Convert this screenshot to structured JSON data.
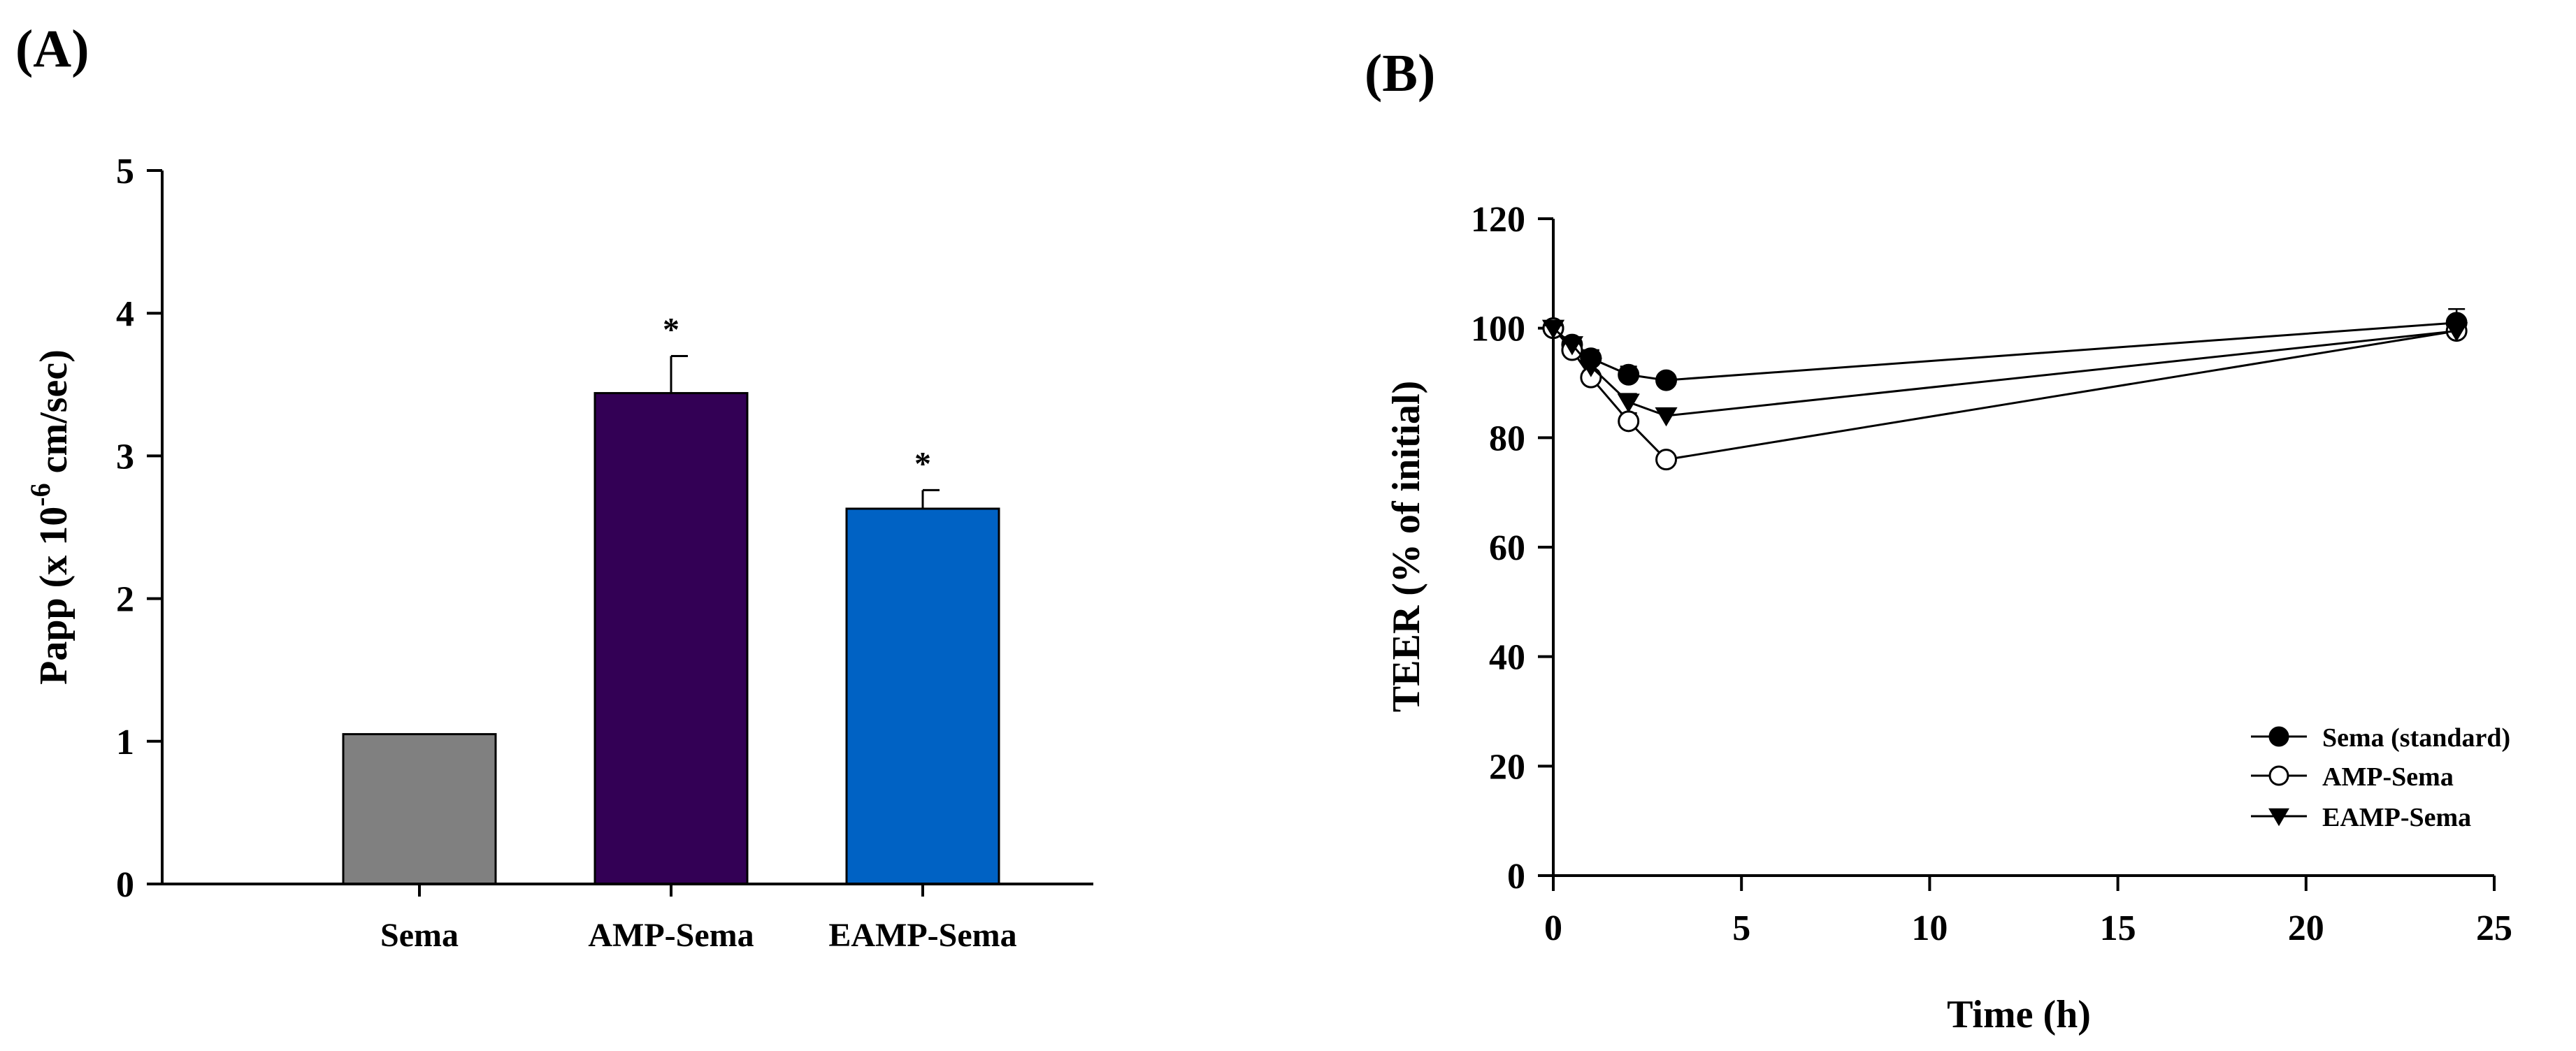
{
  "chart_data": [
    {
      "panel_label": "(A)",
      "type": "bar",
      "categories": [
        "Sema",
        "AMP-Sema",
        "EAMP-Sema"
      ],
      "values": [
        1.05,
        3.44,
        2.63
      ],
      "errors": [
        0.01,
        0.26,
        0.13
      ],
      "significance": [
        "",
        "*",
        "*"
      ],
      "colors": [
        "#808080",
        "#330055",
        "#0062c4"
      ],
      "ylabel": "Papp (x 10",
      "ylabel_exp": "-6",
      "ylabel_unit": " cm/sec)",
      "xlabel": "",
      "ylim": [
        0,
        5
      ],
      "yticks": [
        "0",
        "1",
        "2",
        "3",
        "4",
        "5"
      ]
    },
    {
      "panel_label": "(B)",
      "type": "line",
      "xlabel": "Time (h)",
      "ylabel": "TEER (% of initial)",
      "xlim": [
        0,
        25
      ],
      "ylim": [
        0,
        120
      ],
      "xticks": [
        "0",
        "5",
        "10",
        "15",
        "20",
        "25"
      ],
      "yticks": [
        "0",
        "20",
        "40",
        "60",
        "80",
        "100",
        "120"
      ],
      "legend_position": "bottom-right",
      "series": [
        {
          "name": "Sema (standard)",
          "marker": "filled-circle",
          "x": [
            0,
            0.5,
            1,
            2,
            3,
            24
          ],
          "y": [
            100,
            97,
            94.5,
            91.5,
            90.5,
            101
          ],
          "err": [
            0.5,
            0.8,
            1.5,
            1.5,
            1,
            2.5
          ]
        },
        {
          "name": "AMP-Sema",
          "marker": "open-circle",
          "x": [
            0,
            0.5,
            1,
            2,
            3,
            24
          ],
          "y": [
            100,
            96,
            91,
            83,
            76,
            99.5
          ],
          "err": [
            0.5,
            0.8,
            1.2,
            1.5,
            1,
            1.5
          ]
        },
        {
          "name": "EAMP-Sema",
          "marker": "filled-triangle",
          "x": [
            0,
            0.5,
            1,
            2,
            3,
            24
          ],
          "y": [
            100,
            97,
            93,
            86.5,
            84,
            99.5
          ],
          "err": [
            0.5,
            0.8,
            1.2,
            1.5,
            1,
            1.5
          ]
        }
      ]
    }
  ]
}
